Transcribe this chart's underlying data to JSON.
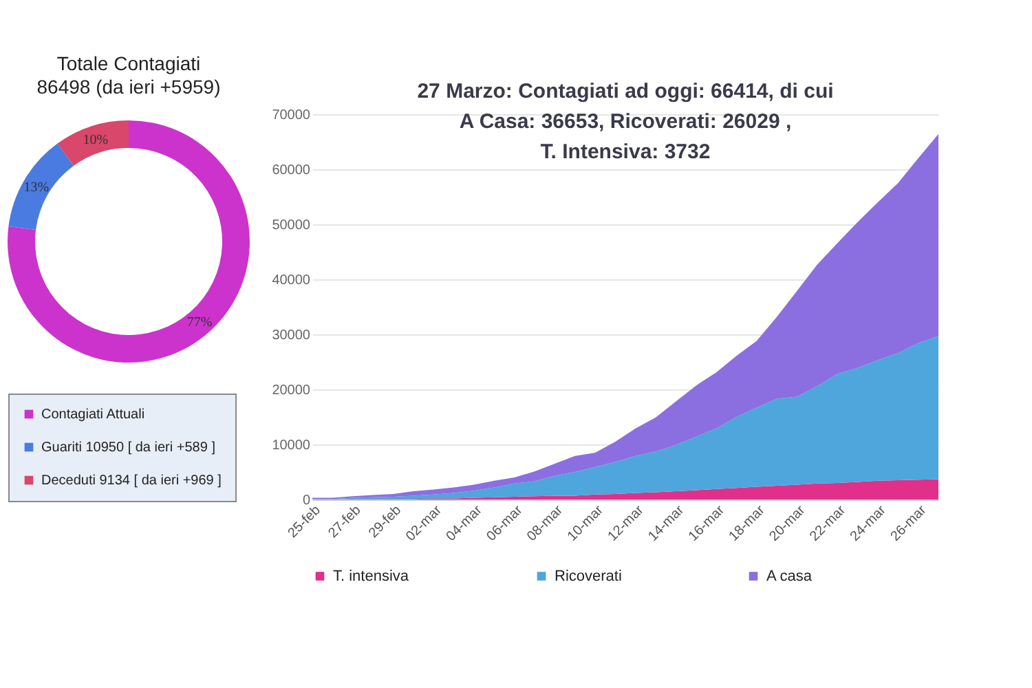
{
  "chart_data": [
    {
      "type": "donut",
      "title": "Totale Contagiati",
      "subtitle": "86498 (da ieri +5959)",
      "categories": [
        "Contagiati Attuali",
        "Guariti 10950 [ da ieri +589 ]",
        "Deceduti 9134 [ da ieri +969 ]"
      ],
      "values": [
        77,
        13,
        10
      ],
      "value_labels": [
        "77%",
        "13%",
        "10%"
      ],
      "colors": [
        "#cc33cc",
        "#4a7be0",
        "#d9476b"
      ],
      "legend": "bottom"
    },
    {
      "type": "area",
      "title": "27 Marzo: Contagiati ad oggi: 66414, di cui\nA Casa: 36653, Ricoverati: 26029 ,\nT. Intensiva: 3732",
      "categories": [
        "25-feb",
        null,
        "27-feb",
        null,
        "29-feb",
        null,
        "02-mar",
        null,
        "04-mar",
        null,
        "06-mar",
        null,
        "08-mar",
        null,
        "10-mar",
        null,
        "12-mar",
        null,
        "14-mar",
        null,
        "16-mar",
        null,
        "18-mar",
        null,
        "20-mar",
        null,
        "22-mar",
        null,
        "24-mar",
        null,
        "26-mar",
        null
      ],
      "stacked": true,
      "ylim": [
        0,
        70000
      ],
      "yticks": [
        0,
        10000,
        20000,
        30000,
        40000,
        50000,
        60000,
        70000
      ],
      "grid": "y",
      "legend": "bottom",
      "series": [
        {
          "name": "T. intensiva",
          "color": "#e0308a",
          "values": [
            0,
            0,
            100,
            100,
            100,
            100,
            200,
            200,
            300,
            400,
            500,
            600,
            700,
            700,
            900,
            1000,
            1200,
            1300,
            1500,
            1700,
            1900,
            2100,
            2300,
            2500,
            2700,
            2900,
            3000,
            3200,
            3400,
            3500,
            3600,
            3700
          ]
        },
        {
          "name": "Ricoverati",
          "color": "#4ea6dc",
          "values": [
            100,
            100,
            200,
            300,
            400,
            600,
            700,
            1000,
            1300,
            1800,
            2400,
            2700,
            3600,
            4300,
            5000,
            5800,
            6700,
            7400,
            8400,
            9700,
            11000,
            12900,
            14400,
            15800,
            16000,
            17700,
            19800,
            20700,
            21900,
            23100,
            24800,
            26000
          ]
        },
        {
          "name": "A casa",
          "color": "#8b6fe0",
          "values": [
            200,
            200,
            300,
            400,
            500,
            800,
            900,
            1000,
            1100,
            1200,
            1100,
            1800,
            2200,
            2900,
            2600,
            3700,
            5000,
            6200,
            7900,
            9300,
            10200,
            11100,
            12100,
            14900,
            19200,
            22100,
            23800,
            26500,
            28700,
            30900,
            33600,
            36700
          ]
        }
      ]
    }
  ]
}
